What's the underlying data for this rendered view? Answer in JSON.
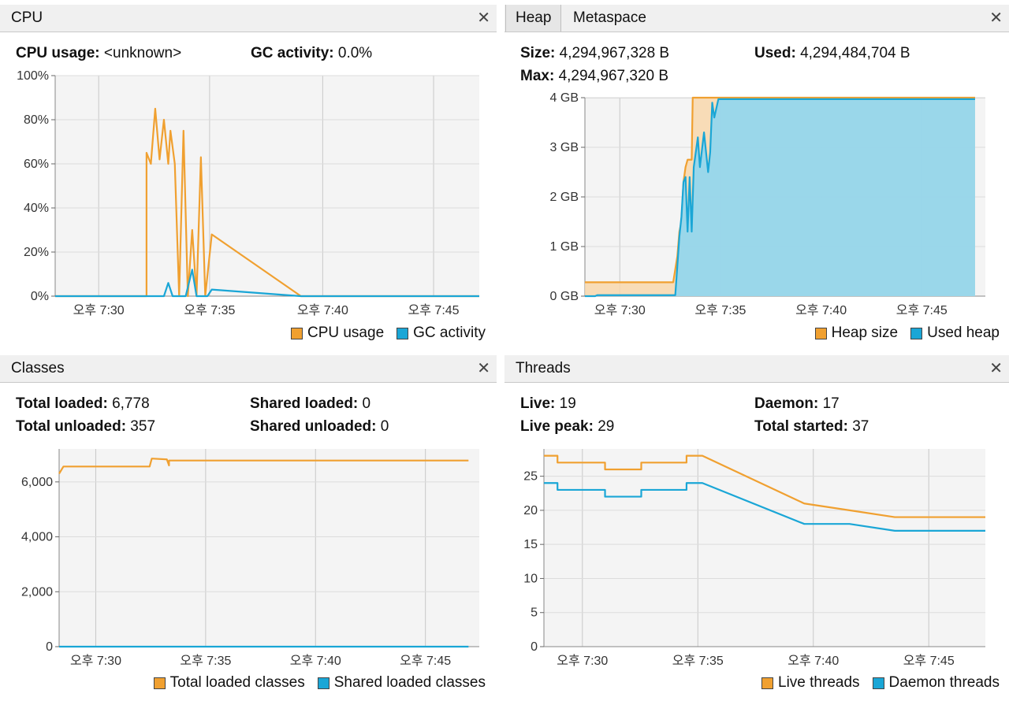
{
  "colors": {
    "orange": "#f0a030",
    "blue": "#1aa6d6",
    "orangeFill": "#f8d7ac",
    "blueFill": "#8fd6f0"
  },
  "cpu": {
    "title": "CPU",
    "stats": [
      {
        "label": "CPU usage:",
        "value": " <unknown>"
      },
      {
        "label": "GC activity:",
        "value": " 0.0%"
      }
    ],
    "chart_data": {
      "type": "line",
      "yticks": [
        "100%",
        "80%",
        "60%",
        "40%",
        "20%",
        "0%"
      ],
      "xticks": [
        "오후 7:30",
        "오후 7:35",
        "오후 7:40",
        "오후 7:45"
      ],
      "ylim": [
        0,
        100
      ],
      "series": [
        {
          "name": "CPU usage",
          "points": [
            [
              0,
              0
            ],
            [
              4.2,
              0
            ],
            [
              4.2,
              65
            ],
            [
              4.4,
              60
            ],
            [
              4.6,
              85
            ],
            [
              4.8,
              62
            ],
            [
              5.0,
              80
            ],
            [
              5.2,
              60
            ],
            [
              5.3,
              75
            ],
            [
              5.5,
              60
            ],
            [
              5.7,
              0
            ],
            [
              5.9,
              75
            ],
            [
              6.1,
              0
            ],
            [
              6.3,
              30
            ],
            [
              6.5,
              0
            ],
            [
              6.7,
              63
            ],
            [
              6.9,
              0
            ],
            [
              7.2,
              28
            ],
            [
              11.3,
              0
            ],
            [
              19.5,
              0
            ]
          ]
        },
        {
          "name": "GC activity",
          "points": [
            [
              0,
              0
            ],
            [
              5.0,
              0
            ],
            [
              5.2,
              6
            ],
            [
              5.4,
              0
            ],
            [
              6.0,
              0
            ],
            [
              6.3,
              12
            ],
            [
              6.5,
              0
            ],
            [
              7.0,
              0
            ],
            [
              7.2,
              3
            ],
            [
              11.3,
              0
            ],
            [
              19.5,
              0
            ]
          ]
        }
      ]
    },
    "legend": [
      "CPU usage",
      "GC activity"
    ]
  },
  "heap": {
    "tabs": [
      "Heap",
      "Metaspace"
    ],
    "stats": [
      {
        "label": "Size:",
        "value": " 4,294,967,328 B"
      },
      {
        "label": "Used:",
        "value": " 4,294,484,704 B"
      },
      {
        "label": "Max:",
        "value": " 4,294,967,320 B"
      }
    ],
    "chart_data": {
      "type": "area",
      "yticks": [
        "4 GB",
        "3 GB",
        "2 GB",
        "1 GB",
        "0 GB"
      ],
      "xticks": [
        "오후 7:30",
        "오후 7:35",
        "오후 7:40",
        "오후 7:45"
      ],
      "ylim": [
        0,
        4
      ],
      "series": [
        {
          "name": "Heap size",
          "points": [
            [
              0,
              0.28
            ],
            [
              4.3,
              0.28
            ],
            [
              4.5,
              0.8
            ],
            [
              4.6,
              1.3
            ],
            [
              4.7,
              1.5
            ],
            [
              4.8,
              2.3
            ],
            [
              4.9,
              2.6
            ],
            [
              5.0,
              2.75
            ],
            [
              5.2,
              2.75
            ],
            [
              5.25,
              4.0
            ],
            [
              19.0,
              4.0
            ]
          ]
        },
        {
          "name": "Used heap",
          "points": [
            [
              0,
              0
            ],
            [
              0.5,
              0
            ],
            [
              0.6,
              0.02
            ],
            [
              4.4,
              0.02
            ],
            [
              4.5,
              0.6
            ],
            [
              4.6,
              1.2
            ],
            [
              4.7,
              1.6
            ],
            [
              4.8,
              2.3
            ],
            [
              4.9,
              2.4
            ],
            [
              5.0,
              1.3
            ],
            [
              5.1,
              2.4
            ],
            [
              5.2,
              1.3
            ],
            [
              5.3,
              2.6
            ],
            [
              5.5,
              3.2
            ],
            [
              5.6,
              2.6
            ],
            [
              5.8,
              3.3
            ],
            [
              6.0,
              2.5
            ],
            [
              6.1,
              2.9
            ],
            [
              6.2,
              3.9
            ],
            [
              6.3,
              3.6
            ],
            [
              6.5,
              3.97
            ],
            [
              19.0,
              3.97
            ]
          ]
        }
      ]
    },
    "legend": [
      "Heap size",
      "Used heap"
    ]
  },
  "classes": {
    "title": "Classes",
    "stats": [
      {
        "label": "Total loaded:",
        "value": " 6,778"
      },
      {
        "label": "Shared loaded:",
        "value": " 0"
      },
      {
        "label": "Total unloaded:",
        "value": " 357"
      },
      {
        "label": "Shared unloaded:",
        "value": " 0"
      }
    ],
    "chart_data": {
      "type": "line",
      "yticks": [
        "6,000",
        "4,000",
        "2,000",
        "0"
      ],
      "xticks": [
        "오후 7:30",
        "오후 7:35",
        "오후 7:40",
        "오후 7:45"
      ],
      "ylim": [
        0,
        7200
      ],
      "series": [
        {
          "name": "Total loaded classes",
          "points": [
            [
              0,
              6300
            ],
            [
              0.2,
              6560
            ],
            [
              4.2,
              6560
            ],
            [
              4.3,
              6850
            ],
            [
              5.0,
              6820
            ],
            [
              5.1,
              6600
            ],
            [
              5.1,
              6778
            ],
            [
              19.0,
              6778
            ]
          ]
        },
        {
          "name": "Shared loaded classes",
          "points": [
            [
              0,
              0
            ],
            [
              19.0,
              0
            ]
          ]
        }
      ]
    },
    "legend": [
      "Total loaded classes",
      "Shared loaded classes"
    ]
  },
  "threads": {
    "title": "Threads",
    "stats": [
      {
        "label": "Live:",
        "value": " 19"
      },
      {
        "label": "Daemon:",
        "value": " 17"
      },
      {
        "label": "Live peak:",
        "value": " 29"
      },
      {
        "label": "Total started:",
        "value": " 37"
      }
    ],
    "chart_data": {
      "type": "line",
      "yticks": [
        "25",
        "20",
        "15",
        "10",
        "5",
        "0"
      ],
      "xticks": [
        "오후 7:30",
        "오후 7:35",
        "오후 7:40",
        "오후 7:45"
      ],
      "ylim": [
        0,
        29
      ],
      "series": [
        {
          "name": "Live threads",
          "points": [
            [
              0,
              28
            ],
            [
              0.6,
              28
            ],
            [
              0.6,
              27
            ],
            [
              2.7,
              27
            ],
            [
              2.7,
              26
            ],
            [
              4.3,
              26
            ],
            [
              4.3,
              27
            ],
            [
              6.3,
              27
            ],
            [
              6.3,
              28
            ],
            [
              7.0,
              28
            ],
            [
              11.5,
              21
            ],
            [
              13.5,
              20
            ],
            [
              15.5,
              19
            ],
            [
              19.5,
              19
            ]
          ]
        },
        {
          "name": "Daemon threads",
          "points": [
            [
              0,
              24
            ],
            [
              0.6,
              24
            ],
            [
              0.6,
              23
            ],
            [
              2.7,
              23
            ],
            [
              2.7,
              22
            ],
            [
              4.3,
              22
            ],
            [
              4.3,
              23
            ],
            [
              6.3,
              23
            ],
            [
              6.3,
              24
            ],
            [
              7.0,
              24
            ],
            [
              11.5,
              18
            ],
            [
              13.5,
              18
            ],
            [
              15.5,
              17
            ],
            [
              19.5,
              17
            ]
          ]
        }
      ]
    },
    "legend": [
      "Live threads",
      "Daemon threads"
    ]
  }
}
